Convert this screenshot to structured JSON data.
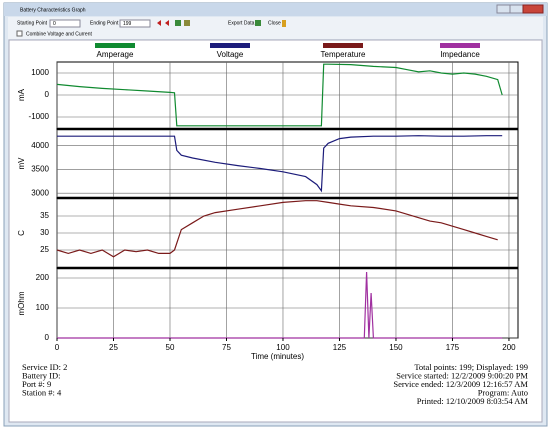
{
  "window": {
    "title": "Battery Characteristics Graph",
    "starting_point_label": "Starting Point",
    "starting_point": 0,
    "ending_point_label": "Ending Point",
    "ending_point": 199,
    "export": "Export Data",
    "close": "Close",
    "checkbox": "Combine Voltage and Current"
  },
  "chart_data": [
    {
      "type": "line",
      "ylabel": "mA",
      "xlim": [
        0,
        204
      ],
      "ylim": [
        -1500,
        1500
      ],
      "yticks": [
        1000,
        0,
        -1000
      ],
      "grid": true,
      "series": [
        {
          "name": "Amperage",
          "color": "#108a30",
          "x": [
            0,
            10,
            20,
            30,
            40,
            50,
            52,
            53,
            60,
            80,
            100,
            117,
            118,
            120,
            130,
            140,
            150,
            155,
            160,
            165,
            170,
            175,
            180,
            185,
            190,
            195,
            197
          ],
          "values": [
            480,
            380,
            300,
            240,
            180,
            120,
            100,
            -1400,
            -1400,
            -1400,
            -1400,
            -1400,
            1400,
            1400,
            1380,
            1300,
            1250,
            1150,
            1050,
            1100,
            1000,
            950,
            1000,
            950,
            850,
            700,
            0
          ]
        }
      ]
    },
    {
      "type": "line",
      "ylabel": "mV",
      "xlim": [
        0,
        204
      ],
      "ylim": [
        2920,
        4330
      ],
      "yticks": [
        4000,
        3500,
        3000
      ],
      "grid": true,
      "series": [
        {
          "name": "Voltage",
          "color": "#1c1c7a",
          "x": [
            0,
            10,
            20,
            30,
            40,
            50,
            52,
            53,
            55,
            60,
            70,
            80,
            90,
            100,
            110,
            115,
            117,
            118,
            120,
            125,
            130,
            140,
            150,
            160,
            170,
            180,
            190,
            197
          ],
          "values": [
            4200,
            4200,
            4200,
            4200,
            4200,
            4200,
            4200,
            3900,
            3800,
            3740,
            3650,
            3580,
            3520,
            3450,
            3350,
            3180,
            3050,
            3950,
            4050,
            4150,
            4180,
            4200,
            4200,
            4210,
            4200,
            4200,
            4210,
            4210
          ]
        }
      ]
    },
    {
      "type": "line",
      "ylabel": "C",
      "xlim": [
        0,
        204
      ],
      "ylim": [
        20,
        40
      ],
      "yticks": [
        35,
        30,
        25
      ],
      "grid": true,
      "series": [
        {
          "name": "Temperature",
          "color": "#7a1a1a",
          "x": [
            0,
            5,
            10,
            15,
            20,
            25,
            30,
            35,
            40,
            45,
            50,
            52,
            55,
            60,
            65,
            70,
            80,
            90,
            100,
            110,
            115,
            120,
            125,
            130,
            140,
            150,
            155,
            160,
            165,
            170,
            175,
            180,
            185,
            190,
            195
          ],
          "values": [
            25,
            24,
            25,
            24,
            25,
            23,
            25,
            24.5,
            25,
            24,
            24,
            25,
            31,
            33,
            35,
            36,
            37,
            38,
            39,
            39.5,
            39.5,
            39,
            38.5,
            38,
            37.5,
            36.5,
            35.5,
            34.5,
            33.5,
            33,
            32,
            31,
            30,
            29,
            28
          ]
        }
      ]
    },
    {
      "type": "line",
      "ylabel": "mOhm",
      "xlabel": "Time (minutes)",
      "xlim": [
        0,
        204
      ],
      "ylim": [
        0,
        230
      ],
      "yticks": [
        200,
        100,
        0
      ],
      "xticks": [
        0,
        25,
        50,
        75,
        100,
        125,
        150,
        175,
        200
      ],
      "grid": true,
      "series": [
        {
          "name": "Impedance",
          "color": "#a030a0",
          "x": [
            0,
            136,
            137,
            138,
            139,
            140,
            197
          ],
          "values": [
            0,
            0,
            220,
            0,
            150,
            0,
            0
          ]
        }
      ]
    }
  ],
  "info_left": [
    "Service ID: 2",
    "Battery ID:",
    "Port #: 9",
    "Station #: 4"
  ],
  "info_right": [
    "Total points: 199; Displayed: 199",
    "Service started: 12/2/2009 9:00:20 PM",
    "Service ended: 12/3/2009 12:16:57 AM",
    "Program: Auto",
    "Printed: 12/10/2009 8:03:54 AM"
  ]
}
